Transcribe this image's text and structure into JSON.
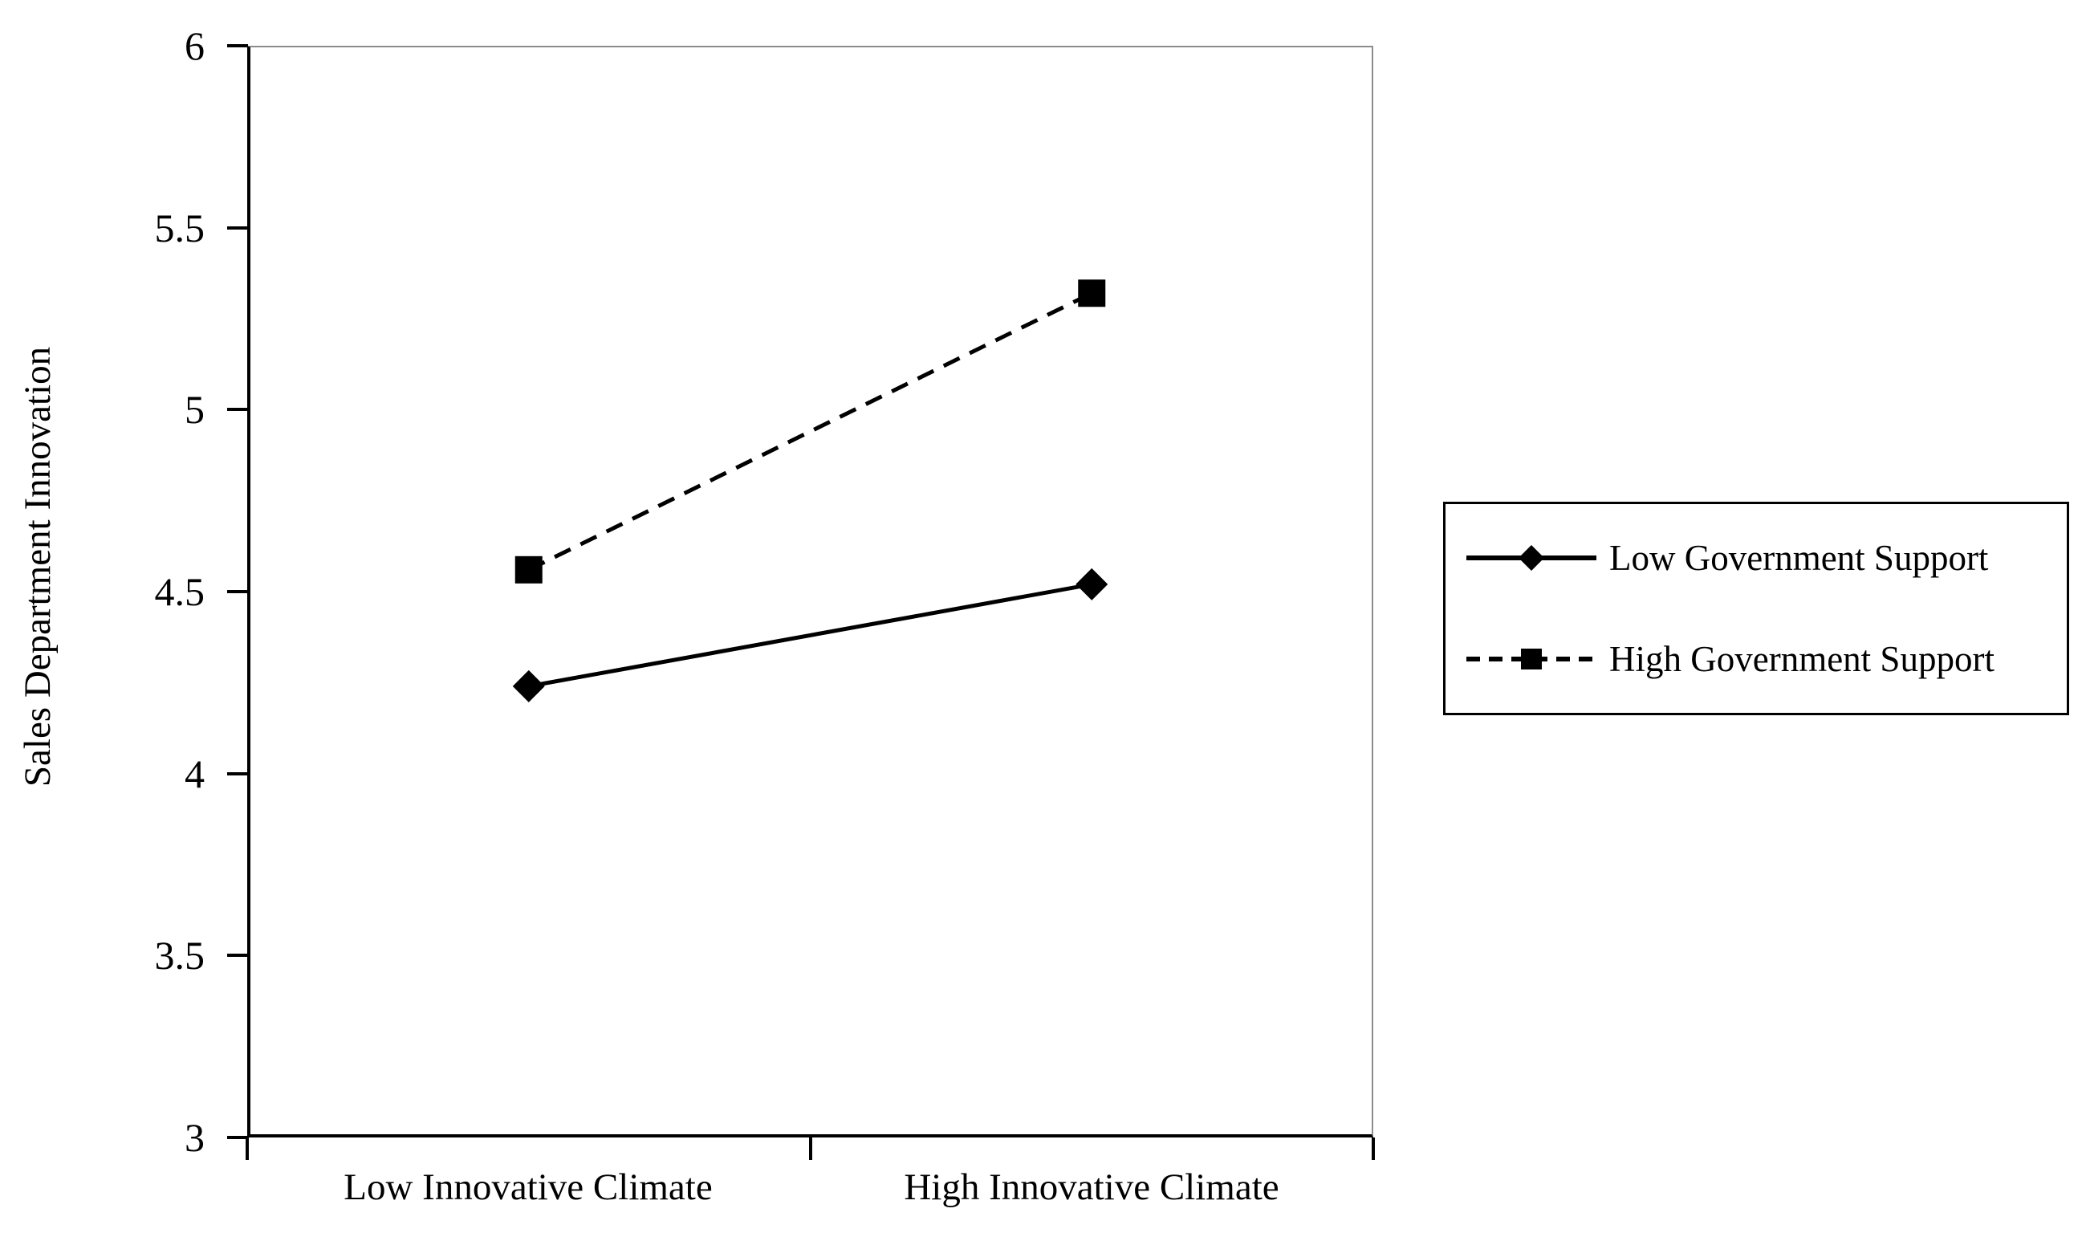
{
  "chart_data": {
    "type": "line",
    "title": "",
    "categories": [
      "Low Innovative Climate",
      "High Innovative Climate"
    ],
    "series": [
      {
        "name": "Low Government Support",
        "values": [
          4.24,
          4.52
        ],
        "marker": "diamond",
        "line_style": "solid",
        "color": "#000000"
      },
      {
        "name": "High Government Support",
        "values": [
          4.56,
          5.32
        ],
        "marker": "square",
        "line_style": "dashed",
        "color": "#000000"
      }
    ],
    "xlabel": "",
    "ylabel": "Sales Department Innovation",
    "ylim": [
      3,
      6
    ],
    "ytick_step": 0.5,
    "yticks": [
      "6",
      "5.5",
      "5",
      "4.5",
      "4",
      "3.5",
      "3"
    ],
    "grid": false,
    "legend_position": "right-outside",
    "background": "#ffffff",
    "axis_color": "#000000",
    "frame_color": "#8c8c8c"
  }
}
